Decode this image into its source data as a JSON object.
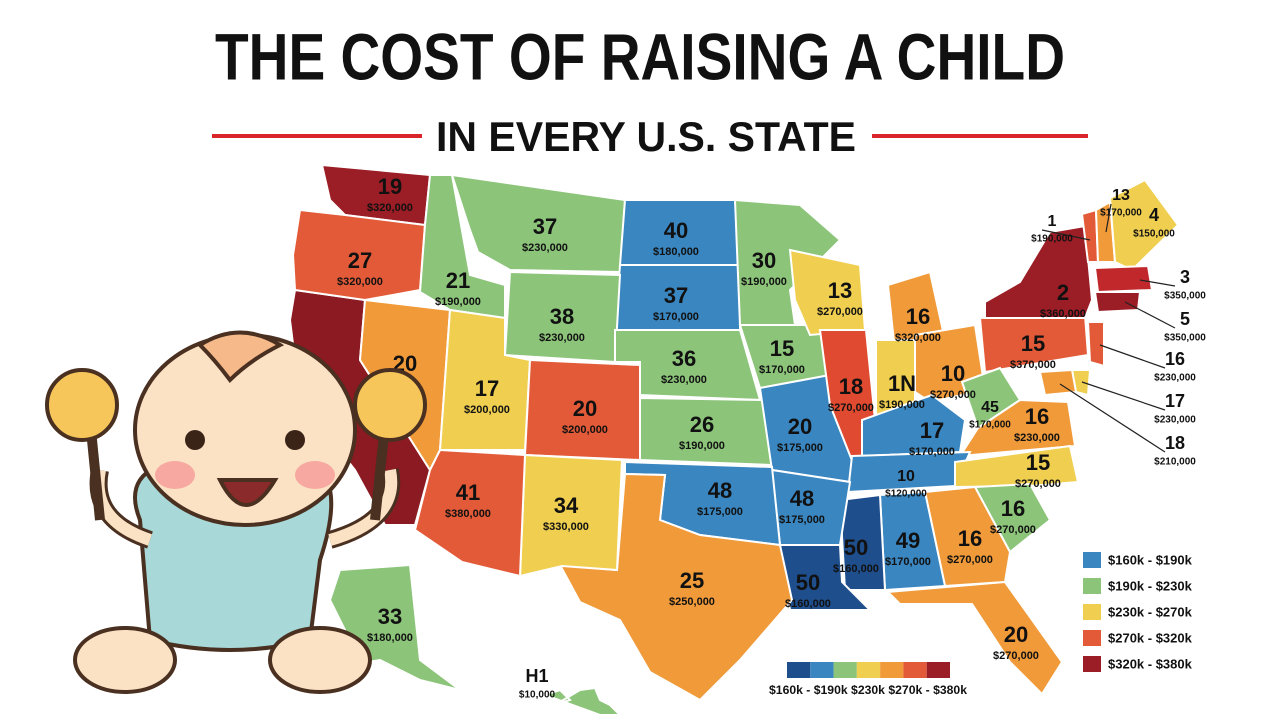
{
  "title": "THE COST OF RAISING A CHILD",
  "subtitle": "IN EVERY U.S. STATE",
  "states": [
    {
      "rank": "19",
      "cost": "$320,000",
      "color": "#9b1d25"
    },
    {
      "rank": "27",
      "cost": "$320,000",
      "color": "#e35a38"
    },
    {
      "rank": "21",
      "cost": "$190,000",
      "color": "#8cc47a"
    },
    {
      "rank": "37",
      "cost": "$230,000",
      "color": "#8cc47a"
    },
    {
      "rank": "40",
      "cost": "$180,000",
      "color": "#3a86c0"
    },
    {
      "rank": "37",
      "cost": "$170,000",
      "color": "#3a86c0"
    },
    {
      "rank": "30",
      "cost": "$190,000",
      "color": "#8cc47a"
    },
    {
      "rank": "38",
      "cost": "$230,000",
      "color": "#8cc47a"
    },
    {
      "rank": "36",
      "cost": "$230,000",
      "color": "#8cc47a"
    },
    {
      "rank": "15",
      "cost": "$170,000",
      "color": "#8cc47a"
    },
    {
      "rank": "13",
      "cost": "$270,000",
      "color": "#f0cf50"
    },
    {
      "rank": "16",
      "cost": "$320,000",
      "color": "#f09a3a"
    },
    {
      "rank": "20",
      "color": "#f09a3a"
    },
    {
      "rank": "17",
      "cost": "$200,000",
      "color": "#f0cf50"
    },
    {
      "rank": "20",
      "cost": "$200,000",
      "color": "#e35a38"
    },
    {
      "rank": "26",
      "cost": "$190,000",
      "color": "#8cc47a"
    },
    {
      "rank": "20",
      "cost": "$175,000",
      "color": "#3a86c0"
    },
    {
      "rank": "18",
      "cost": "$270,000",
      "color": "#e04a30"
    },
    {
      "rank": "1N",
      "cost": "$190,000",
      "color": "#f0cf50"
    },
    {
      "rank": "10",
      "cost": "$270,000",
      "color": "#f09a3a"
    },
    {
      "rank": "15",
      "cost": "$370,000",
      "color": "#e35a38"
    },
    {
      "rank": "2",
      "cost": "$360,000",
      "color": "#9b1d25"
    },
    {
      "rank": "1",
      "cost": "$190,000",
      "color": "#e35a38"
    },
    {
      "rank": "13",
      "cost": "$170,000",
      "color": "#f09a3a"
    },
    {
      "rank": "4",
      "cost": "$150,000",
      "color": "#f0cf50"
    },
    {
      "rank": "3",
      "cost": "$350,000",
      "color": "#c0282c"
    },
    {
      "rank": "5",
      "cost": "$350,000",
      "color": "#9b1d25"
    },
    {
      "rank": "16",
      "cost": "$230,000",
      "color": "#e35a38"
    },
    {
      "rank": "17",
      "cost": "$230,000",
      "color": "#f0cf50"
    },
    {
      "rank": "18",
      "cost": "$210,000",
      "color": "#f09a3a"
    },
    {
      "rank": "45",
      "cost": "$170,000",
      "color": "#8cc47a"
    },
    {
      "rank": "16",
      "cost": "$230,000",
      "color": "#f09a3a"
    },
    {
      "rank": "17",
      "cost": "$170,000",
      "color": "#3a86c0"
    },
    {
      "rank": "10",
      "cost": "$120,000",
      "color": "#3a86c0"
    },
    {
      "rank": "15",
      "cost": "$270,000",
      "color": "#f0cf50"
    },
    {
      "rank": "16",
      "cost": "$270,000",
      "color": "#8cc47a"
    },
    {
      "rank": "16",
      "cost": "$270,000",
      "color": "#f09a3a"
    },
    {
      "rank": "49",
      "cost": "$170,000",
      "color": "#3a86c0"
    },
    {
      "rank": "50",
      "cost": "$160,000",
      "color": "#1f4e8c"
    },
    {
      "rank": "50",
      "cost": "$160,000",
      "color": "#1f4e8c"
    },
    {
      "rank": "48",
      "cost": "$175,000",
      "color": "#3a86c0"
    },
    {
      "rank": "48",
      "cost": "$175,000",
      "color": "#3a86c0"
    },
    {
      "rank": "25",
      "cost": "$250,000",
      "color": "#f09a3a"
    },
    {
      "rank": "34",
      "cost": "$330,000",
      "color": "#f0cf50"
    },
    {
      "rank": "41",
      "cost": "$380,000",
      "color": "#e35a38"
    },
    {
      "rank": "20",
      "cost": "$270,000",
      "color": "#f09a3a"
    },
    {
      "rank": "33",
      "cost": "$180,000",
      "color": "#8cc47a"
    },
    {
      "rank": "H1",
      "cost": "$10,000",
      "color": "#8cc47a"
    }
  ],
  "legend": [
    {
      "label": "$160k - $190k",
      "color": "#3a86c0"
    },
    {
      "label": "$190k - $230k",
      "color": "#8cc47a"
    },
    {
      "label": "$230k - $270k",
      "color": "#f0cf50"
    },
    {
      "label": "$270k - $320k",
      "color": "#e35a38"
    },
    {
      "label": "$320k - $380k",
      "color": "#9b1d25"
    }
  ],
  "colorbar": {
    "label": "$160k - $190k $230k $270k - $380k",
    "colors": [
      "#1f4e8c",
      "#3a86c0",
      "#8cc47a",
      "#f0cf50",
      "#f09a3a",
      "#e35a38",
      "#9b1d25"
    ]
  }
}
